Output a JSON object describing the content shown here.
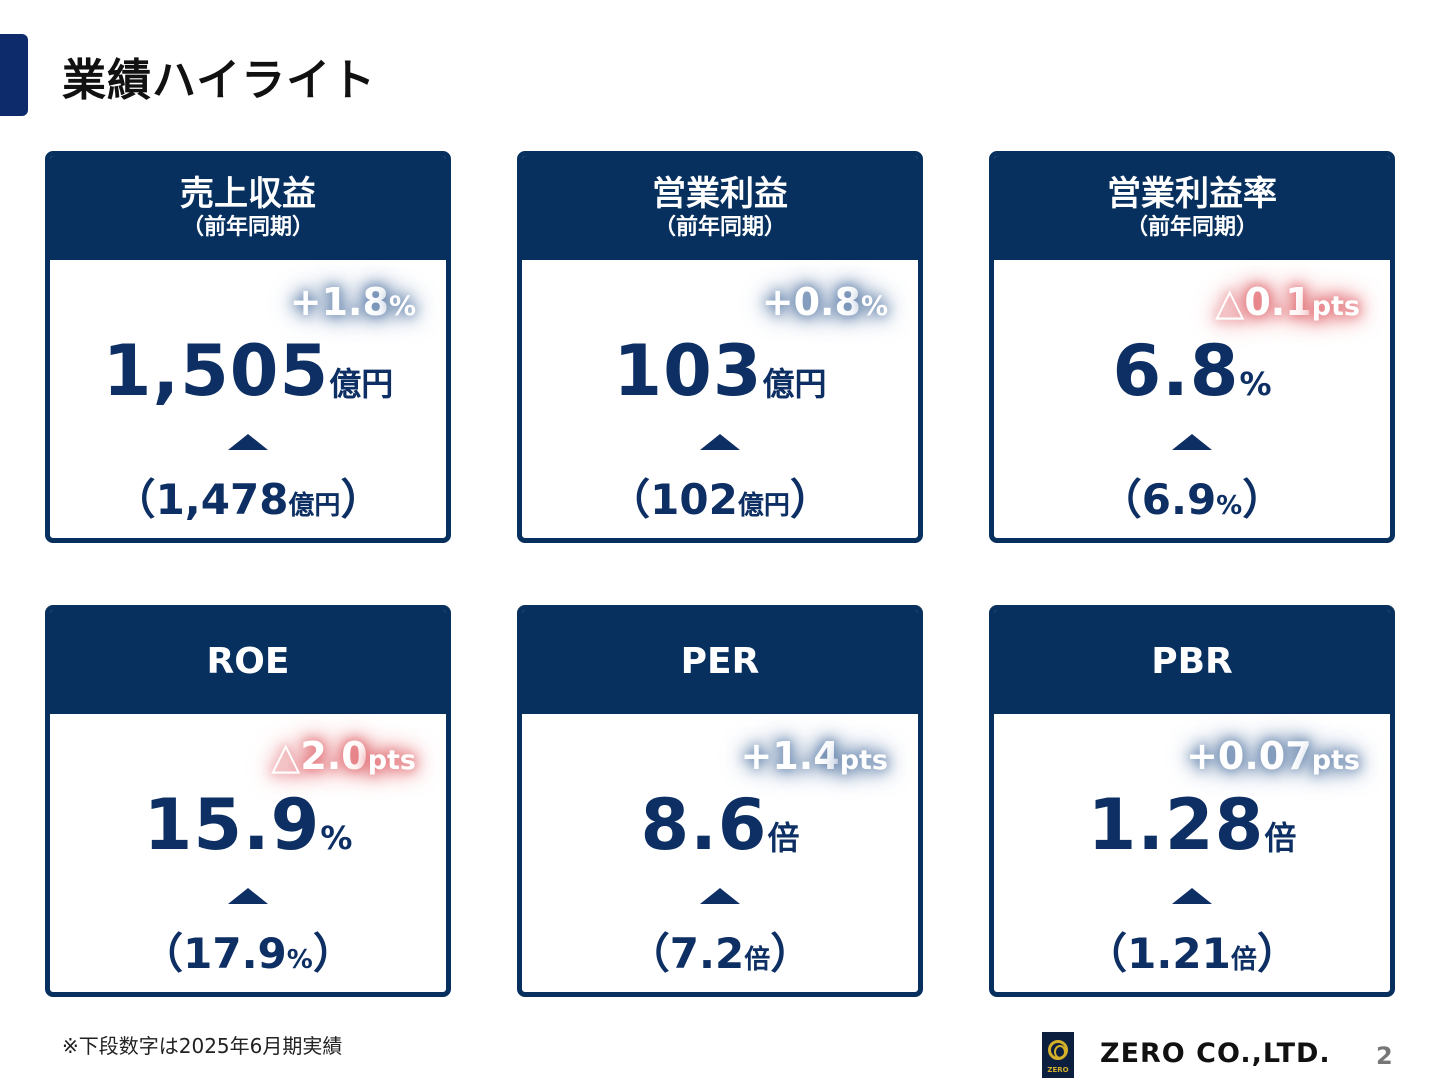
{
  "page": {
    "title": "業績ハイライト",
    "footnote": "※下段数字は2025年6月期実績",
    "company": "ZERO CO.,LTD.",
    "logo_text": "ZERO",
    "page_number": "2"
  },
  "cards": [
    {
      "name": "売上収益",
      "sub": "（前年同期）",
      "delta": {
        "value": "+1.8",
        "unit": "%",
        "direction": "positive"
      },
      "current": {
        "value": "1,505",
        "unit": "億円"
      },
      "previous": {
        "open": "（",
        "value": "1,478",
        "unit": "億円",
        "close": "）"
      }
    },
    {
      "name": "営業利益",
      "sub": "（前年同期）",
      "delta": {
        "value": "+0.8",
        "unit": "%",
        "direction": "positive"
      },
      "current": {
        "value": "103",
        "unit": "億円"
      },
      "previous": {
        "open": "（",
        "value": "102",
        "unit": "億円",
        "close": "）"
      }
    },
    {
      "name": "営業利益率",
      "sub": "（前年同期）",
      "delta": {
        "value": "△0.1",
        "unit": "pts",
        "direction": "negative"
      },
      "current": {
        "value": "6.8",
        "unit": "%"
      },
      "previous": {
        "open": "（",
        "value": "6.9",
        "unit": "%",
        "close": "）"
      }
    },
    {
      "name": "ROE",
      "sub": "",
      "delta": {
        "value": "△2.0",
        "unit": "pts",
        "direction": "negative"
      },
      "current": {
        "value": "15.9",
        "unit": "%"
      },
      "previous": {
        "open": "（",
        "value": "17.9",
        "unit": "%",
        "close": "）"
      }
    },
    {
      "name": "PER",
      "sub": "",
      "delta": {
        "value": "+1.4",
        "unit": "pts",
        "direction": "positive"
      },
      "current": {
        "value": "8.6",
        "unit": "倍"
      },
      "previous": {
        "open": "（",
        "value": "7.2",
        "unit": "倍",
        "close": "）"
      }
    },
    {
      "name": "PBR",
      "sub": "",
      "delta": {
        "value": "+0.07",
        "unit": "pts",
        "direction": "positive"
      },
      "current": {
        "value": "1.28",
        "unit": "倍"
      },
      "previous": {
        "open": "（",
        "value": "1.21",
        "unit": "倍",
        "close": "）"
      }
    }
  ],
  "colors": {
    "navy": "#07305f",
    "text_navy": "#0d2f63",
    "positive_glow": "#5a7ba6",
    "negative_glow": "#dd5c63"
  }
}
